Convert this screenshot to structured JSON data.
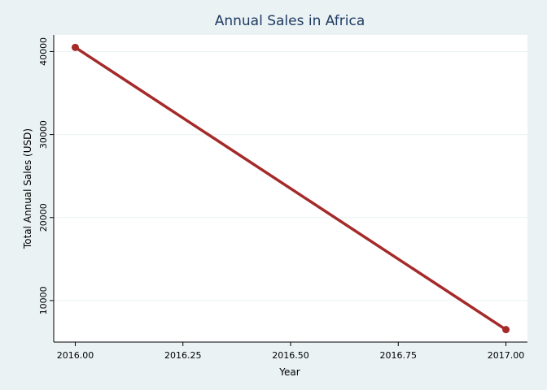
{
  "chart_data": {
    "type": "line",
    "title": "Annual Sales in Africa",
    "xlabel": "Year",
    "ylabel": "Total Annual Sales (USD)",
    "x": [
      2016.0,
      2017.0
    ],
    "series": [
      {
        "values": [
          40500,
          6500
        ],
        "color": "#a52a2a"
      }
    ],
    "xticks": [
      2016.0,
      2016.25,
      2016.5,
      2016.75,
      2017.0
    ],
    "xtick_labels": [
      "2016.00",
      "2016.25",
      "2016.50",
      "2016.75",
      "2017.00"
    ],
    "yticks": [
      10000,
      20000,
      30000,
      40000
    ],
    "ytick_labels": [
      "10000",
      "20000",
      "30000",
      "40000"
    ],
    "xlim": [
      2015.95,
      2017.05
    ],
    "ylim": [
      5000,
      42000
    ],
    "grid": true,
    "legend": "none",
    "colors": {
      "background": "#eaf2f3",
      "plot_background": "#ffffff",
      "title": "#1f3a63",
      "grid": "#eaf2f3"
    }
  }
}
